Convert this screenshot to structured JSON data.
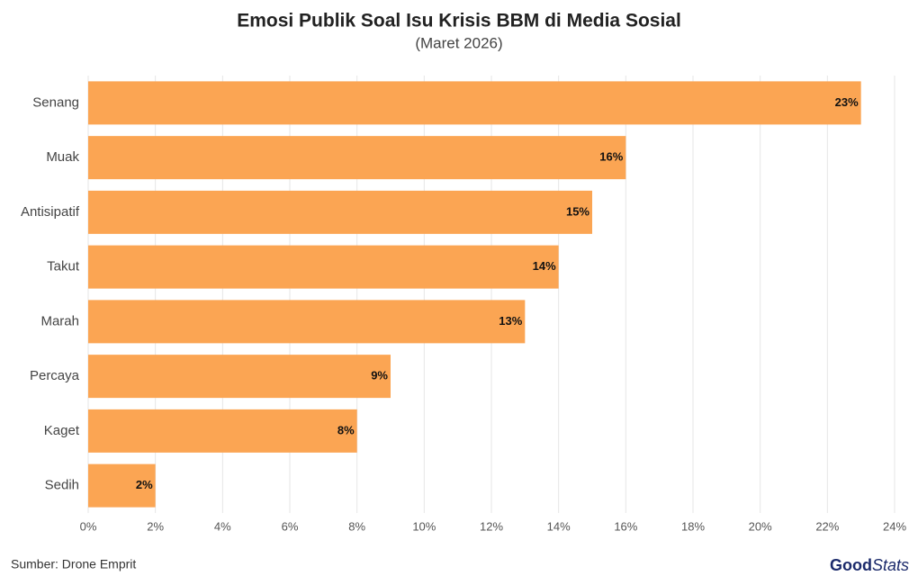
{
  "chart_data": {
    "type": "hbar",
    "title": "Emosi Publik Soal Isu Krisis BBM di Media Sosial",
    "subtitle": "(Maret 2026)",
    "categories": [
      "Senang",
      "Muak",
      "Antisipatif",
      "Takut",
      "Marah",
      "Percaya",
      "Kaget",
      "Sedih"
    ],
    "values": [
      23,
      16,
      15,
      14,
      13,
      9,
      8,
      2
    ],
    "value_labels": [
      "23%",
      "16%",
      "15%",
      "14%",
      "13%",
      "9%",
      "8%",
      "2%"
    ],
    "color": "#fba553",
    "xlim": [
      0,
      24
    ],
    "xticks": [
      {
        "value": 0,
        "label": "0%"
      },
      {
        "value": 2,
        "label": "2%"
      },
      {
        "value": 4,
        "label": "4%"
      },
      {
        "value": 6,
        "label": "6%"
      },
      {
        "value": 8,
        "label": "8%"
      },
      {
        "value": 10,
        "label": "10%"
      },
      {
        "value": 12,
        "label": "12%"
      },
      {
        "value": 14,
        "label": "14%"
      },
      {
        "value": 16,
        "label": "16%"
      },
      {
        "value": 18,
        "label": "18%"
      },
      {
        "value": 20,
        "label": "20%"
      },
      {
        "value": 22,
        "label": "22%"
      },
      {
        "value": 24,
        "label": "24%"
      }
    ],
    "grid": true,
    "source": "Sumber: Drone Emprit",
    "logo": {
      "first": "Good",
      "second": "Stats"
    }
  }
}
